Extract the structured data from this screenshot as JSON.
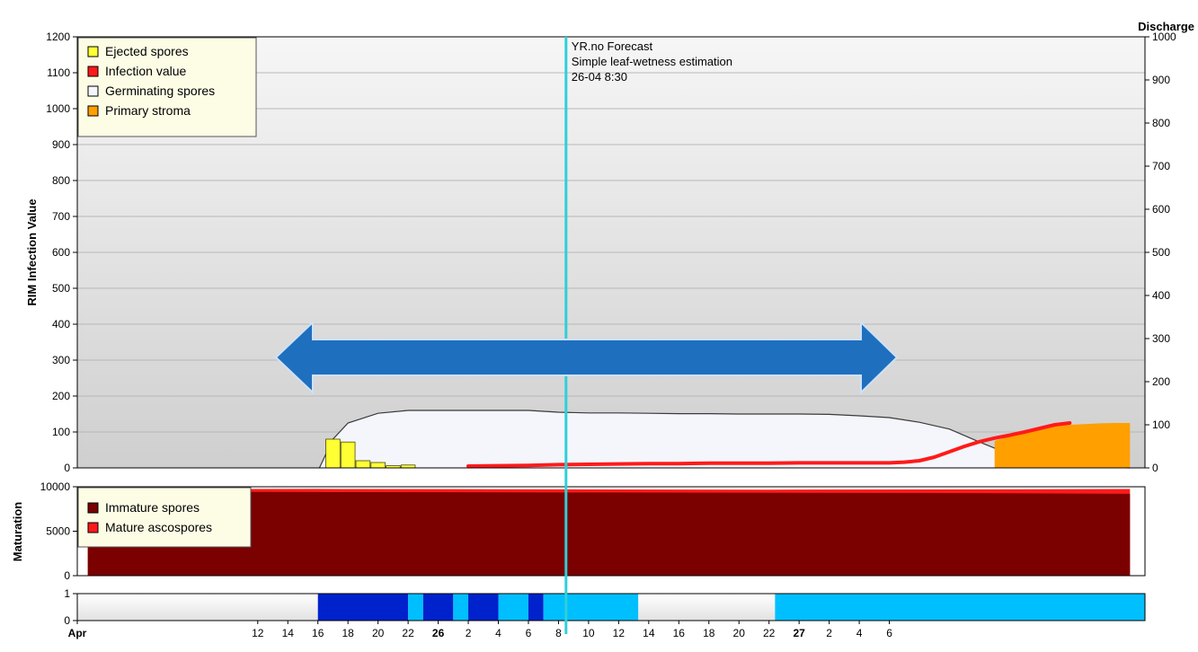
{
  "colors": {
    "ejected": "#ffff33",
    "infection": "#ff1a1a",
    "germinating": "#f4f6fc",
    "stroma": "#ff9f00",
    "immature": "#7b0000",
    "mature": "#ff1a1a",
    "forecast_line": "#2ed0d8",
    "arrow": "#1f6fbf",
    "wet_dark": "#0022cc",
    "wet_light": "#00bfff"
  },
  "chart_data": [
    {
      "type": "area",
      "title": "",
      "ylabel": "RIM Infection Value",
      "y2label": "Discharge",
      "ylim": [
        0,
        1200
      ],
      "y2lim": [
        0,
        1000
      ],
      "y_ticks": [
        "0",
        "100",
        "200",
        "300",
        "400",
        "500",
        "600",
        "700",
        "800",
        "900",
        "1000",
        "1100",
        "1200"
      ],
      "y2_ticks": [
        "0",
        "100",
        "200",
        "300",
        "400",
        "500",
        "600",
        "700",
        "800",
        "900",
        "1000"
      ],
      "x_unit": "hours from 00:00 on 24 Apr",
      "legend": [
        "Ejected spores",
        "Infection value",
        "Germinating spores",
        "Primary stroma"
      ],
      "legend_position": "top-left",
      "annotation": [
        "YR.no Forecast",
        "Simple leaf-wetness estimation",
        "26-04 8:30"
      ],
      "forecast_x": 56.5,
      "germinating_spores": {
        "x": [
          40.1,
          41,
          42,
          44,
          46,
          48,
          50,
          52,
          54,
          56,
          58,
          60,
          62,
          64,
          66,
          68,
          70,
          72,
          74,
          76,
          78,
          80,
          82,
          84,
          86,
          88,
          90,
          92,
          94
        ],
        "y": [
          0,
          80,
          125,
          152,
          160,
          160,
          160,
          160,
          160,
          155,
          153,
          153,
          152,
          151,
          151,
          150,
          150,
          150,
          149,
          145,
          140,
          127,
          108,
          72,
          38,
          20,
          8,
          2,
          0
        ]
      },
      "ejected_spores": {
        "x": [
          41,
          42,
          43,
          44,
          45,
          46
        ],
        "y": [
          80,
          72,
          20,
          15,
          6,
          8
        ]
      },
      "infection_value": {
        "x": [
          50,
          52,
          54,
          56,
          58,
          60,
          62,
          64,
          66,
          68,
          70,
          72,
          74,
          76,
          78,
          79,
          80,
          81,
          82,
          83,
          84,
          85,
          86,
          87,
          88,
          89,
          90
        ],
        "y": [
          5,
          6,
          7,
          9,
          10,
          11,
          12,
          12,
          13,
          13,
          13,
          14,
          14,
          14,
          14,
          16,
          20,
          30,
          45,
          60,
          73,
          83,
          91,
          100,
          110,
          120,
          125
        ]
      },
      "primary_stroma": {
        "x": [
          85,
          86,
          87,
          88,
          89,
          90,
          91,
          92,
          93,
          94
        ],
        "y": [
          75,
          88,
          100,
          108,
          116,
          120,
          122,
          124,
          125,
          125
        ]
      }
    },
    {
      "type": "area",
      "ylabel": "Maturation",
      "ylim": [
        0,
        10000
      ],
      "y_ticks": [
        "0",
        "5000",
        "10000"
      ],
      "legend": [
        "Immature spores",
        "Mature ascospores"
      ],
      "legend_position": "top-left",
      "immature_spores": {
        "x": [
          24.7,
          26,
          28,
          30,
          40,
          60,
          80,
          94
        ],
        "y": [
          9750,
          9600,
          9500,
          9450,
          9400,
          9350,
          9300,
          9200
        ]
      },
      "mature_ascospores": {
        "x": [
          24.7,
          26,
          28,
          30,
          40,
          60,
          70,
          80,
          94
        ],
        "y": [
          9750,
          9800,
          9780,
          9750,
          9760,
          9700,
          9680,
          9700,
          9750
        ]
      }
    },
    {
      "type": "bar",
      "ylim": [
        0,
        1
      ],
      "y_ticks": [
        "0",
        "1"
      ],
      "x_ticks": [
        "Apr",
        "12",
        "14",
        "16",
        "18",
        "20",
        "22",
        "26",
        "2",
        "4",
        "6",
        "8",
        "10",
        "12",
        "14",
        "16",
        "18",
        "20",
        "22",
        "27",
        "2",
        "4",
        "6"
      ],
      "wetness_segments": [
        {
          "start": 24,
          "end": 40,
          "level": "none"
        },
        {
          "start": 40,
          "end": 46,
          "level": "dark"
        },
        {
          "start": 46,
          "end": 47,
          "level": "light"
        },
        {
          "start": 47,
          "end": 49,
          "level": "dark"
        },
        {
          "start": 49,
          "end": 50,
          "level": "light"
        },
        {
          "start": 50,
          "end": 52,
          "level": "dark"
        },
        {
          "start": 52,
          "end": 54,
          "level": "light"
        },
        {
          "start": 54,
          "end": 55,
          "level": "dark"
        },
        {
          "start": 55,
          "end": 61.3,
          "level": "light"
        },
        {
          "start": 61.3,
          "end": 70.4,
          "level": "none"
        },
        {
          "start": 70.4,
          "end": 95,
          "level": "light"
        }
      ]
    }
  ]
}
